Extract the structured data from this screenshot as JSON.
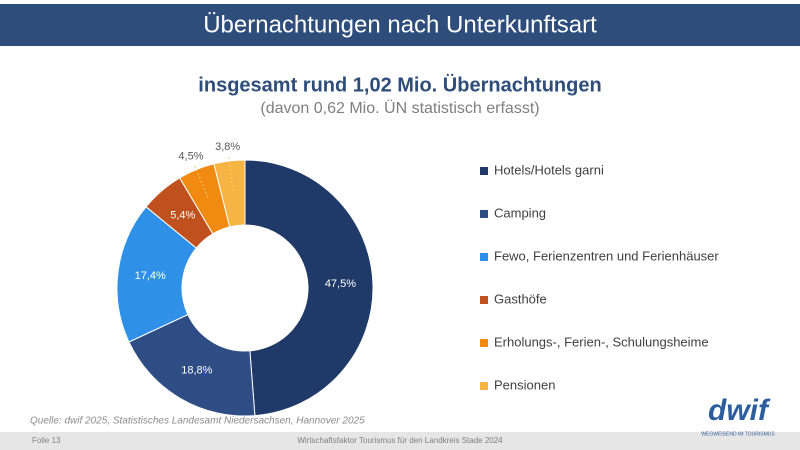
{
  "header": {
    "title": "Übernachtungen nach Unterkunftsart"
  },
  "chart_data": {
    "type": "donut",
    "title": "insgesamt rund 1,02 Mio. Übernachtungen",
    "subtitle": "(davon 0,62 Mio. ÜN statistisch erfasst)",
    "categories": [
      "Hotels/Hotels garni",
      "Camping",
      "Fewo, Ferienzentren und Ferienhäuser",
      "Gasthöfe",
      "Erholungs-, Ferien-, Schulungsheime",
      "Pensionen"
    ],
    "values": [
      47.5,
      18.8,
      17.4,
      5.4,
      4.5,
      3.8
    ],
    "value_labels": [
      "47,5%",
      "18,8%",
      "17,4%",
      "5,4%",
      "4,5%",
      "3,8%"
    ],
    "colors": [
      "#1f3a68",
      "#2f4d85",
      "#2e90e6",
      "#c0511e",
      "#f28a12",
      "#f6b443"
    ],
    "legend": "right"
  },
  "source": "Quelle: dwif 2025, Statistisches Landesamt Niedersachsen, Hannover 2025",
  "footer": {
    "slide": "Folie 13",
    "text": "Wirtschaftsfaktor Tourismus für den Landkreis Stade 2024"
  },
  "logo": {
    "name": "dwif",
    "tagline": "WEGWEISEND IM TOURISMUS"
  }
}
